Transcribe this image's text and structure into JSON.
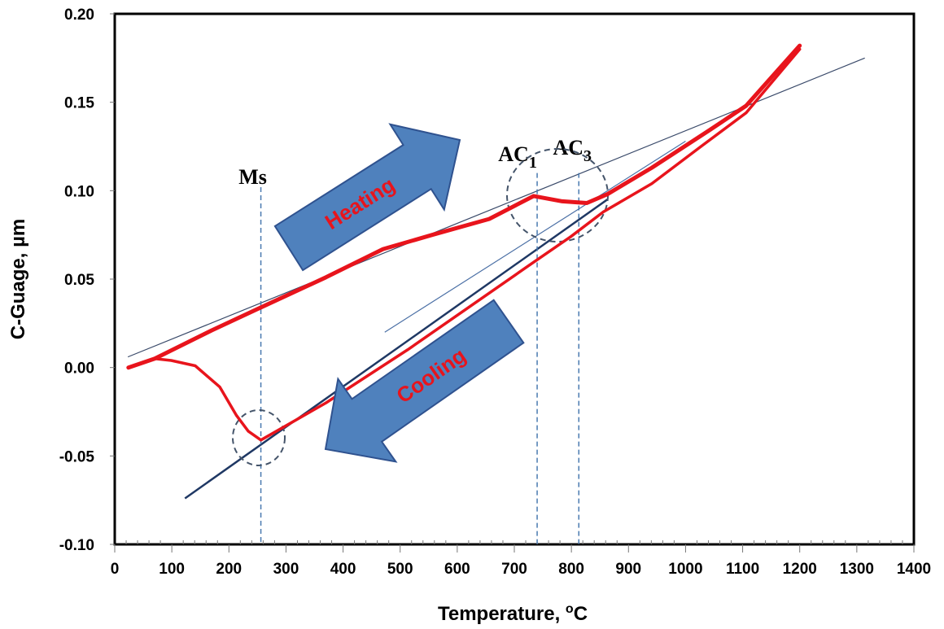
{
  "chart_data": {
    "type": "line",
    "title": "",
    "xlabel": "Temperature, ",
    "xlabel_unit_sup": "o",
    "xlabel_unit": "C",
    "ylabel": "C-Guage, µm",
    "xlim": [
      0,
      1400
    ],
    "ylim": [
      -0.1,
      0.2
    ],
    "xticks": [
      0,
      100,
      200,
      300,
      400,
      500,
      600,
      700,
      800,
      900,
      1000,
      1100,
      1200,
      1300,
      1400
    ],
    "yticks": [
      0.2,
      0.15,
      0.1,
      0.05,
      0.0,
      -0.05,
      -0.1
    ],
    "ytick_labels": [
      "0.20",
      "0.15",
      "0.10",
      "0.05",
      "0.00",
      "-0.05",
      "-0.10"
    ],
    "grid": false,
    "series": [
      {
        "name": "Heating",
        "color": "#e8141c",
        "x": [
          24,
          70,
          170,
          256,
          370,
          470,
          556,
          656,
          734,
          784,
          827,
          863,
          941,
          1041,
          1106,
          1200
        ],
        "y": [
          0.0,
          0.005,
          0.021,
          0.034,
          0.051,
          0.067,
          0.075,
          0.084,
          0.097,
          0.094,
          0.093,
          0.098,
          0.113,
          0.134,
          0.148,
          0.182
        ]
      },
      {
        "name": "Cooling",
        "color": "#e8141c",
        "x": [
          1200,
          1106,
          1027,
          941,
          856,
          799,
          727,
          513,
          370,
          256,
          234,
          213,
          184,
          141,
          99,
          70
        ],
        "y": [
          0.18,
          0.144,
          0.125,
          0.104,
          0.088,
          0.074,
          0.058,
          0.01,
          -0.02,
          -0.041,
          -0.036,
          -0.027,
          -0.011,
          0.001,
          0.004,
          0.005
        ]
      }
    ],
    "fit_lines": [
      {
        "name": "heating-tangent",
        "color": "#3a4a6a",
        "x": [
          23,
          1314
        ],
        "y": [
          0.006,
          0.175
        ]
      },
      {
        "name": "cooling-tangent",
        "color": "#1f3864",
        "x": [
          123,
          863
        ],
        "y": [
          -0.074,
          0.095
        ]
      },
      {
        "name": "austenite-tangent",
        "color": "#4a6fa5",
        "x": [
          473,
          1000
        ],
        "y": [
          0.02,
          0.128
        ]
      }
    ],
    "markers": [
      {
        "label": "Ms",
        "x": 256,
        "ytop": 0.102
      },
      {
        "label": "AC",
        "sub": "1",
        "x": 740,
        "ytop": 0.11
      },
      {
        "label": "AC",
        "sub": "3",
        "x": 813,
        "ytop": 0.11
      }
    ],
    "annotations": {
      "heating": "Heating",
      "cooling": "Cooling"
    },
    "colors": {
      "arrow": "#4f81bd",
      "arrow_edge": "#2f528f",
      "dash": "#4a7ab0"
    }
  }
}
